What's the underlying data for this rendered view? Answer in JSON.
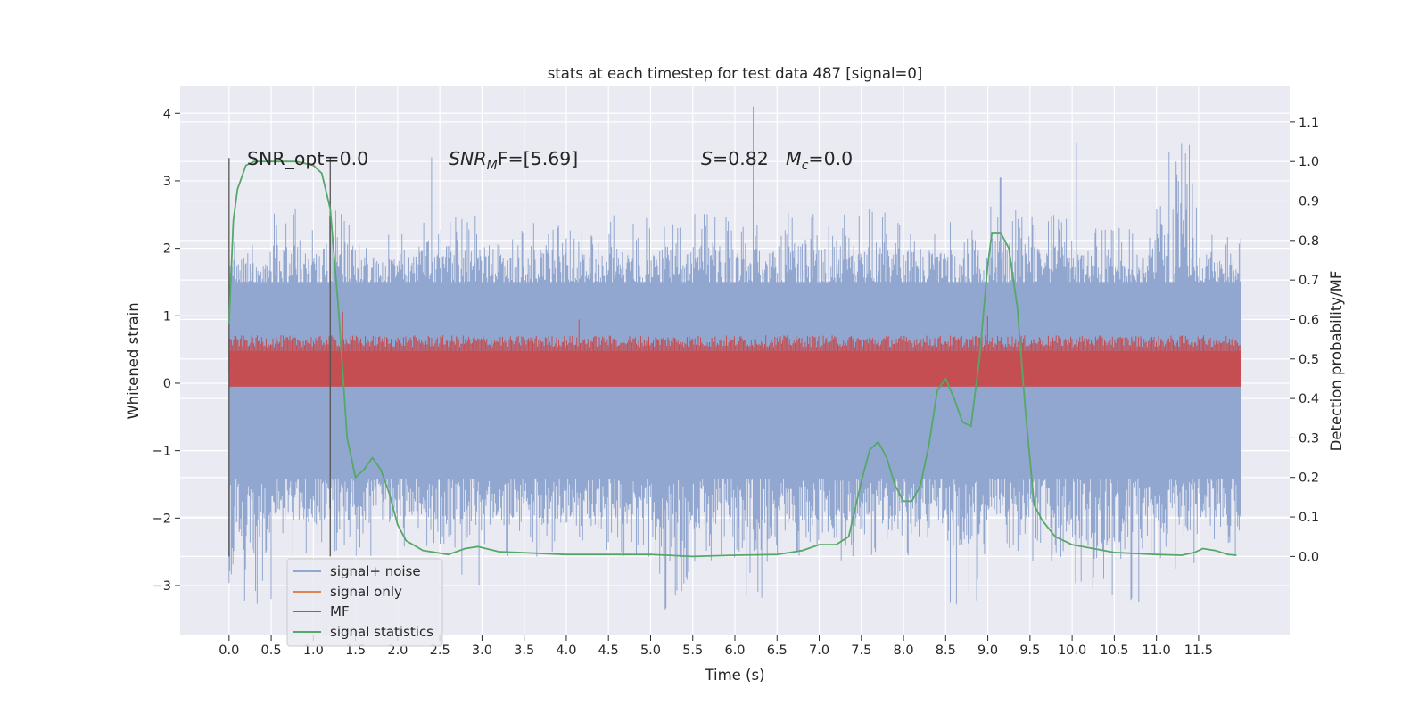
{
  "chart_data": {
    "type": "line",
    "title": "stats at each timestep for test data 487 [signal=0]",
    "xlabel": "Time (s)",
    "ylabel_left": "Whitened strain",
    "ylabel_right": "Detection probability/MF",
    "xlim": [
      -0.58,
      12.58
    ],
    "ylim_left": [
      -3.74,
      4.4
    ],
    "ylim_right": [
      -0.2,
      1.19
    ],
    "x_ticks": [
      0.0,
      0.5,
      1.0,
      1.5,
      2.0,
      2.5,
      3.0,
      3.5,
      4.0,
      4.5,
      5.0,
      5.5,
      6.0,
      6.5,
      7.0,
      7.5,
      8.0,
      8.5,
      9.0,
      9.5,
      10.0,
      10.5,
      11.0,
      11.5
    ],
    "x_tick_labels": [
      "0.0",
      "0.5",
      "1.0",
      "1.5",
      "2.0",
      "2.5",
      "3.0",
      "3.5",
      "4.0",
      "4.5",
      "5.0",
      "5.5",
      "6.0",
      "6.5",
      "7.0",
      "7.5",
      "8.0",
      "8.5",
      "9.0",
      "9.5",
      "10.0",
      "10.5",
      "11.0",
      "11.5"
    ],
    "y_left_ticks": [
      -3,
      -2,
      -1,
      0,
      1,
      2,
      3,
      4
    ],
    "y_left_tick_labels": [
      "−3",
      "−2",
      "−1",
      "0",
      "1",
      "2",
      "3",
      "4"
    ],
    "y_right_ticks": [
      0.0,
      0.1,
      0.2,
      0.3,
      0.4,
      0.5,
      0.6,
      0.7,
      0.8,
      0.9,
      1.0,
      1.1
    ],
    "y_right_tick_labels": [
      "0.0",
      "0.1",
      "0.2",
      "0.3",
      "0.4",
      "0.5",
      "0.6",
      "0.7",
      "0.8",
      "0.9",
      "1.0",
      "1.1"
    ],
    "grid": true,
    "legend_position": "lower-left",
    "annotations": {
      "snr_opt": "SNR_opt=0.0",
      "snr_mf_base": "SNR",
      "snr_mf_sub": "M",
      "snr_mf_rest": "F=[5.69]",
      "s_label": "S",
      "s_rest": "=0.82",
      "mc_base": "M",
      "mc_sub": "c",
      "mc_rest": "=0.0"
    },
    "vertical_lines": [
      0.0,
      1.2
    ],
    "series": [
      {
        "name": "signal+ noise",
        "axis": "left",
        "color": "#92a7cf",
        "x_range": [
          0.0,
          12.0
        ],
        "envelope_max_approx": [
          2.1,
          2.6,
          2.6,
          2.2,
          2.4,
          2.5,
          2.3,
          2.4,
          2.3,
          2.5,
          2.4,
          2.6,
          2.4,
          2.6,
          2.5,
          2.6,
          2.4,
          2.4,
          2.7,
          2.5,
          2.3,
          2.3,
          3.6,
          2.2
        ],
        "envelope_min_approx": [
          -3.3,
          -2.6,
          -2.5,
          -2.6,
          -2.5,
          -3.2,
          -2.6,
          -2.6,
          -2.5,
          -2.6,
          -3.4,
          -2.7,
          -3.3,
          -2.6,
          -2.7,
          -2.6,
          -2.6,
          -3.3,
          -2.5,
          -2.7,
          -3.2,
          -3.3,
          -2.9,
          -2.7
        ],
        "peaks": [
          {
            "x": 6.22,
            "y": 4.1
          },
          {
            "x": 10.05,
            "y": 3.57
          },
          {
            "x": 2.4,
            "y": 3.35
          },
          {
            "x": 9.15,
            "y": 3.05
          }
        ]
      },
      {
        "name": "signal only",
        "axis": "left",
        "color": "#dd8452",
        "x": [
          0.0,
          12.0
        ],
        "values": [
          0.0,
          0.0
        ]
      },
      {
        "name": "MF",
        "axis": "right",
        "color": "#c44e52",
        "x_range": [
          0.0,
          12.0
        ],
        "baseline_approx": 0.47,
        "band_approx": [
          0.43,
          0.56
        ],
        "peaks": [
          {
            "x": 1.35,
            "y": 0.62
          },
          {
            "x": 4.15,
            "y": 0.6
          },
          {
            "x": 9.0,
            "y": 0.61
          }
        ]
      },
      {
        "name": "signal statistics",
        "axis": "right",
        "color": "#55a868",
        "x": [
          0.0,
          0.05,
          0.1,
          0.2,
          0.3,
          0.5,
          0.8,
          1.0,
          1.1,
          1.2,
          1.3,
          1.4,
          1.5,
          1.6,
          1.7,
          1.8,
          1.9,
          2.0,
          2.1,
          2.3,
          2.6,
          2.8,
          2.95,
          3.2,
          4.0,
          4.5,
          5.0,
          5.5,
          6.0,
          6.5,
          6.8,
          7.0,
          7.2,
          7.35,
          7.5,
          7.6,
          7.7,
          7.8,
          7.9,
          8.0,
          8.1,
          8.2,
          8.3,
          8.4,
          8.5,
          8.6,
          8.7,
          8.8,
          8.9,
          9.0,
          9.05,
          9.15,
          9.25,
          9.35,
          9.45,
          9.55,
          9.65,
          9.8,
          10.0,
          10.5,
          11.0,
          11.3,
          11.45,
          11.55,
          11.7,
          11.85,
          11.95
        ],
        "values": [
          0.59,
          0.85,
          0.93,
          0.99,
          1.0,
          1.0,
          1.0,
          0.99,
          0.97,
          0.88,
          0.62,
          0.3,
          0.2,
          0.22,
          0.25,
          0.22,
          0.16,
          0.08,
          0.04,
          0.015,
          0.005,
          0.02,
          0.025,
          0.012,
          0.005,
          0.005,
          0.005,
          0.0,
          0.003,
          0.005,
          0.015,
          0.03,
          0.03,
          0.05,
          0.19,
          0.27,
          0.29,
          0.25,
          0.18,
          0.14,
          0.14,
          0.18,
          0.28,
          0.42,
          0.45,
          0.4,
          0.34,
          0.33,
          0.5,
          0.74,
          0.82,
          0.82,
          0.78,
          0.63,
          0.36,
          0.13,
          0.09,
          0.05,
          0.03,
          0.01,
          0.005,
          0.003,
          0.01,
          0.02,
          0.015,
          0.005,
          0.003
        ]
      }
    ]
  }
}
